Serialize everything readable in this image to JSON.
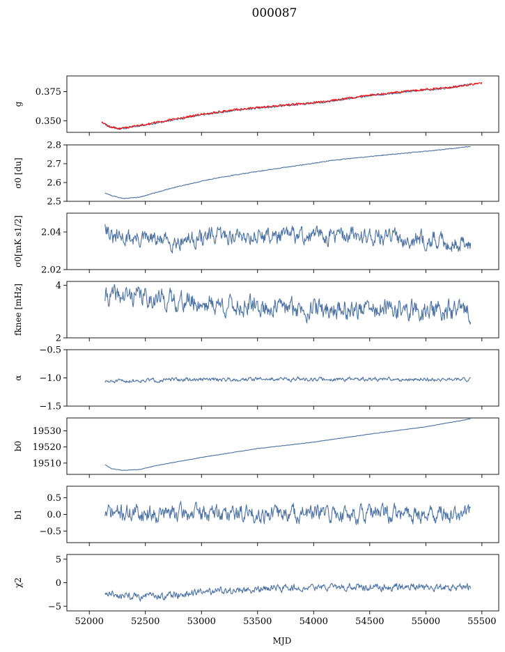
{
  "figure": {
    "title": "000087"
  },
  "colors": {
    "series": "#4c72a4",
    "overlay": "#ff0000"
  },
  "chart_data": {
    "type": "line",
    "x_axis": {
      "label": "MJD",
      "xlim": [
        51800,
        55650
      ],
      "ticks": [
        52000,
        52500,
        53000,
        53500,
        54000,
        54500,
        55000,
        55500
      ]
    },
    "panels": [
      {
        "id": "gain",
        "ylabel": "g",
        "ylim": [
          0.34,
          0.3885
        ],
        "yticks": [
          0.35,
          0.375
        ],
        "ytick_labels": [
          "0.350",
          "0.375"
        ],
        "series": [
          {
            "kind": "trend",
            "x_start": 52110,
            "x_end": 55400,
            "knots": [
              [
                52110,
                0.349
              ],
              [
                52180,
                0.3445
              ],
              [
                52280,
                0.343
              ],
              [
                52400,
                0.345
              ],
              [
                52600,
                0.348
              ],
              [
                53000,
                0.355
              ],
              [
                53300,
                0.359
              ],
              [
                53700,
                0.3625
              ],
              [
                54100,
                0.366
              ],
              [
                54500,
                0.3715
              ],
              [
                54900,
                0.3755
              ],
              [
                55200,
                0.378
              ],
              [
                55400,
                0.3815
              ]
            ],
            "noise": 0.0008,
            "seed": 11
          },
          {
            "kind": "trend",
            "color_key": "overlay",
            "x_start": 52110,
            "x_end": 55500,
            "knots": [
              [
                52110,
                0.3495
              ],
              [
                52180,
                0.3448
              ],
              [
                52280,
                0.3432
              ],
              [
                52400,
                0.3453
              ],
              [
                52600,
                0.3485
              ],
              [
                53000,
                0.3555
              ],
              [
                53300,
                0.3595
              ],
              [
                53700,
                0.363
              ],
              [
                54100,
                0.3665
              ],
              [
                54500,
                0.372
              ],
              [
                54900,
                0.376
              ],
              [
                55200,
                0.3785
              ],
              [
                55500,
                0.3825
              ]
            ],
            "noise": 0.0009,
            "seed": 12
          }
        ]
      },
      {
        "id": "sigma0-du",
        "ylabel": "σ0 [du]",
        "ylim": [
          2.5,
          2.8
        ],
        "yticks": [
          2.5,
          2.6,
          2.7,
          2.8
        ],
        "ytick_labels": [
          "2.5",
          "2.6",
          "2.7",
          "2.8"
        ],
        "series": [
          {
            "kind": "trend",
            "x_start": 52140,
            "x_end": 55400,
            "knots": [
              [
                52140,
                2.545
              ],
              [
                52200,
                2.53
              ],
              [
                52300,
                2.515
              ],
              [
                52450,
                2.522
              ],
              [
                52600,
                2.548
              ],
              [
                52800,
                2.58
              ],
              [
                53100,
                2.62
              ],
              [
                53400,
                2.65
              ],
              [
                53800,
                2.685
              ],
              [
                54200,
                2.72
              ],
              [
                54700,
                2.75
              ],
              [
                55100,
                2.772
              ],
              [
                55400,
                2.792
              ]
            ],
            "noise": 0.002,
            "seed": 21
          }
        ]
      },
      {
        "id": "sigma0-mk",
        "ylabel": "σ0[mK s1/2]",
        "ylim": [
          2.02,
          2.05
        ],
        "yticks": [
          2.02,
          2.04
        ],
        "ytick_labels": [
          "2.02",
          "2.04"
        ],
        "series": [
          {
            "kind": "noise",
            "x_start": 52140,
            "x_end": 55400,
            "mean": 2.037,
            "amp": 0.0045,
            "seed": 31,
            "knots": [
              [
                52140,
                2.046
              ],
              [
                52200,
                2.036
              ],
              [
                52300,
                2.037
              ],
              [
                52700,
                2.035
              ],
              [
                53200,
                2.038
              ],
              [
                53800,
                2.038
              ],
              [
                54500,
                2.038
              ],
              [
                55000,
                2.036
              ],
              [
                55400,
                2.033
              ]
            ]
          }
        ]
      },
      {
        "id": "fknee",
        "ylabel": "fknee [mHz]",
        "ylim": [
          2,
          4.15
        ],
        "yticks": [
          2,
          4
        ],
        "ytick_labels": [
          "2",
          "4"
        ],
        "series": [
          {
            "kind": "noise",
            "x_start": 52140,
            "x_end": 55400,
            "mean": 3.15,
            "amp": 0.38,
            "seed": 41,
            "knots": [
              [
                52140,
                3.55
              ],
              [
                52400,
                3.6
              ],
              [
                52800,
                3.4
              ],
              [
                53300,
                3.2
              ],
              [
                54000,
                3.1
              ],
              [
                54800,
                3.05
              ],
              [
                55400,
                3.0
              ]
            ]
          }
        ]
      },
      {
        "id": "alpha",
        "ylabel": "α",
        "ylim": [
          -1.5,
          -0.5
        ],
        "yticks": [
          -1.5,
          -1.0,
          -0.5
        ],
        "ytick_labels": [
          "−1.5",
          "−1.0",
          "−0.5"
        ],
        "series": [
          {
            "kind": "noise",
            "x_start": 52140,
            "x_end": 55400,
            "mean": -1.03,
            "amp": 0.035,
            "seed": 51,
            "knots": [
              [
                52140,
                -1.07
              ],
              [
                52500,
                -1.04
              ],
              [
                53500,
                -1.02
              ],
              [
                55400,
                -1.03
              ]
            ]
          }
        ]
      },
      {
        "id": "b0",
        "ylabel": "b0",
        "ylim": [
          19503,
          19538
        ],
        "yticks": [
          19510,
          19520,
          19530
        ],
        "ytick_labels": [
          "19510",
          "19520",
          "19530"
        ],
        "series": [
          {
            "kind": "trend",
            "x_start": 52140,
            "x_end": 55400,
            "knots": [
              [
                52140,
                19509
              ],
              [
                52200,
                19506.5
              ],
              [
                52300,
                19505.5
              ],
              [
                52450,
                19506
              ],
              [
                52600,
                19508.5
              ],
              [
                53000,
                19513.5
              ],
              [
                53500,
                19519
              ],
              [
                54000,
                19523
              ],
              [
                54500,
                19528
              ],
              [
                55000,
                19532.5
              ],
              [
                55400,
                19537.5
              ]
            ],
            "noise": 0.15,
            "seed": 61
          }
        ]
      },
      {
        "id": "b1",
        "ylabel": "b1",
        "ylim": [
          -0.85,
          0.85
        ],
        "yticks": [
          -0.5,
          0.0,
          0.5
        ],
        "ytick_labels": [
          "−0.5",
          "0.0",
          "0.5"
        ],
        "series": [
          {
            "kind": "noise",
            "x_start": 52140,
            "x_end": 55400,
            "mean": 0.02,
            "amp": 0.26,
            "seed": 71,
            "knots": [
              [
                52140,
                0.05
              ],
              [
                55400,
                0.0
              ]
            ]
          }
        ]
      },
      {
        "id": "chi2",
        "ylabel": "χ2",
        "ylim": [
          -6,
          6
        ],
        "yticks": [
          -5,
          0,
          5
        ],
        "ytick_labels": [
          "−5",
          "0",
          "5"
        ],
        "series": [
          {
            "kind": "noise",
            "x_start": 52140,
            "x_end": 55400,
            "mean": -1.0,
            "amp": 0.8,
            "seed": 81,
            "knots": [
              [
                52140,
                -2.2
              ],
              [
                52400,
                -3.0
              ],
              [
                52700,
                -2.8
              ],
              [
                53200,
                -1.6
              ],
              [
                54000,
                -1.0
              ],
              [
                54800,
                -0.9
              ],
              [
                55400,
                -1.0
              ]
            ]
          }
        ]
      }
    ]
  }
}
